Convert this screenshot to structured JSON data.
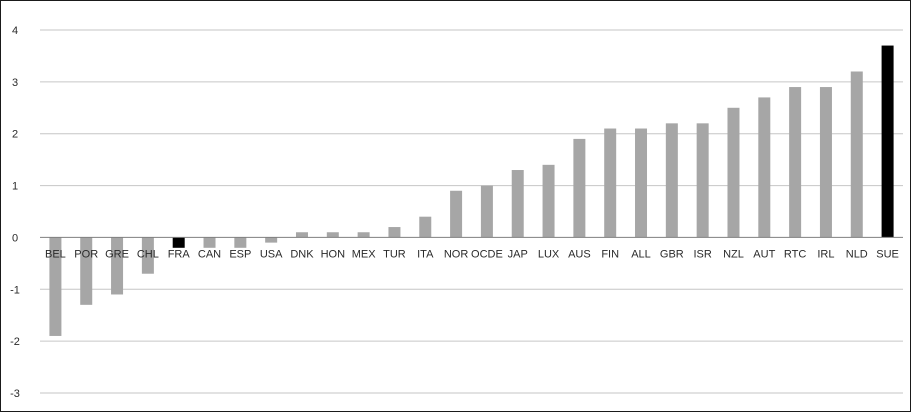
{
  "chart_data": {
    "type": "bar",
    "title": "",
    "xlabel": "",
    "ylabel": "",
    "ylim": [
      -3,
      4
    ],
    "yticks": [
      4,
      3,
      2,
      1,
      0,
      -1,
      -2,
      -3
    ],
    "grid": true,
    "categories": [
      "BEL",
      "POR",
      "GRE",
      "CHL",
      "FRA",
      "CAN",
      "ESP",
      "USA",
      "DNK",
      "HON",
      "MEX",
      "TUR",
      "ITA",
      "NOR",
      "OCDE",
      "JAP",
      "LUX",
      "AUS",
      "FIN",
      "ALL",
      "GBR",
      "ISR",
      "NZL",
      "AUT",
      "RTC",
      "IRL",
      "NLD",
      "SUE"
    ],
    "values": [
      -1.9,
      -1.3,
      -1.1,
      -0.7,
      -0.2,
      -0.2,
      -0.2,
      -0.1,
      0.1,
      0.1,
      0.1,
      0.2,
      0.4,
      0.9,
      1.0,
      1.3,
      1.4,
      1.9,
      2.1,
      2.1,
      2.2,
      2.2,
      2.5,
      2.7,
      2.9,
      2.9,
      3.2,
      3.7
    ],
    "highlighted": [
      "FRA",
      "SUE"
    ],
    "colors": {
      "bar": "#a6a6a6",
      "highlight": "#000000",
      "grid": "#c6c6c6",
      "axis": "#7f7f7f"
    }
  }
}
